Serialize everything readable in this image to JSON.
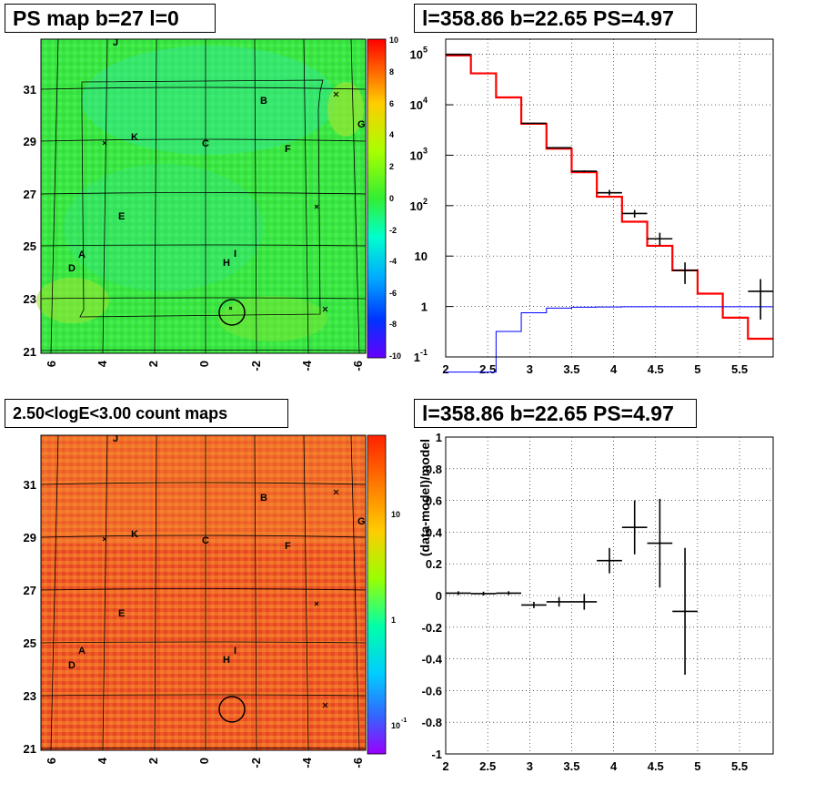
{
  "titles": {
    "top_left": "PS map b=27 l=0",
    "top_right": "l=358.86 b=22.65 PS=4.97",
    "bottom_left": "2.50<logE<3.00 count maps",
    "bottom_right": "l=358.86 b=22.65 PS=4.97"
  },
  "map": {
    "x_ticks": [
      "6",
      "4",
      "2",
      "0",
      "-2",
      "-4",
      "-6"
    ],
    "y_ticks": [
      "31",
      "29",
      "27",
      "25",
      "23",
      "21"
    ],
    "sources": [
      "J",
      "B",
      "G",
      "K",
      "C",
      "F",
      "E",
      "A",
      "D",
      "I",
      "H"
    ],
    "colors": {
      "ps_bg": "#3ce63c",
      "count_bg": "#ef5a28"
    }
  },
  "ps_colorbar": {
    "labels": [
      "10",
      "8",
      "6",
      "4",
      "2",
      "0",
      "-2",
      "-4",
      "-6",
      "-8",
      "-10"
    ]
  },
  "count_colorbar": {
    "labels": [
      "10",
      "1",
      "10",
      "-1"
    ]
  },
  "chart_data": [
    {
      "type": "line",
      "title": "l=358.86 b=22.65 PS=4.97",
      "xlim": [
        2,
        5.9
      ],
      "ylim": [
        0.1,
        200000
      ],
      "yscale": "log",
      "grid": true,
      "x_ticks": [
        "2",
        "2.5",
        "3",
        "3.5",
        "4",
        "4.5",
        "5",
        "5.5"
      ],
      "y_ticks": [
        {
          "base": "1",
          "exp": "-1",
          "v": 0.1
        },
        {
          "base": "1",
          "exp": "",
          "v": 1
        },
        {
          "base": "10",
          "exp": "",
          "v": 10
        },
        {
          "base": "10",
          "exp": "2",
          "v": 100
        },
        {
          "base": "10",
          "exp": "3",
          "v": 1000
        },
        {
          "base": "10",
          "exp": "4",
          "v": 10000
        },
        {
          "base": "10",
          "exp": "5",
          "v": 100000
        }
      ],
      "series": [
        {
          "kind": "step",
          "color": "#ff0000",
          "edges": [
            2.0,
            2.3,
            2.6,
            2.9,
            3.2,
            3.5,
            3.8,
            4.1,
            4.4,
            4.7,
            5.0,
            5.3,
            5.6,
            5.9
          ],
          "values": [
            95000,
            42000,
            14000,
            4200,
            1350,
            460,
            150,
            48,
            16,
            5.2,
            1.8,
            0.6,
            0.23
          ]
        },
        {
          "kind": "step",
          "color": "#0000ff",
          "edges": [
            2.0,
            2.3,
            2.6,
            2.9,
            3.2,
            3.5,
            3.8,
            4.1,
            4.4,
            4.7,
            5.0,
            5.3,
            5.6,
            5.9
          ],
          "values": [
            0.05,
            0.05,
            0.32,
            0.75,
            0.93,
            0.97,
            0.98,
            0.99,
            0.99,
            0.99,
            0.99,
            0.99,
            0.99
          ]
        },
        {
          "kind": "errorbar",
          "color": "#000000",
          "points": [
            {
              "x": 2.15,
              "xerr": 0.15,
              "y": 100000,
              "lo": 97000,
              "hi": 103000
            },
            {
              "x": 3.05,
              "xerr": 0.15,
              "y": 4300,
              "lo": 4200,
              "hi": 4400
            },
            {
              "x": 3.35,
              "xerr": 0.15,
              "y": 1400,
              "lo": 1360,
              "hi": 1440
            },
            {
              "x": 3.65,
              "xerr": 0.15,
              "y": 480,
              "lo": 460,
              "hi": 500
            },
            {
              "x": 3.95,
              "xerr": 0.15,
              "y": 180,
              "lo": 160,
              "hi": 205
            },
            {
              "x": 4.25,
              "xerr": 0.15,
              "y": 70,
              "lo": 58,
              "hi": 82
            },
            {
              "x": 4.55,
              "xerr": 0.15,
              "y": 22,
              "lo": 16,
              "hi": 29
            },
            {
              "x": 4.85,
              "xerr": 0.15,
              "y": 5.2,
              "lo": 2.8,
              "hi": 7.5
            },
            {
              "x": 5.75,
              "xerr": 0.15,
              "y": 2.0,
              "lo": 0.55,
              "hi": 3.5
            }
          ]
        }
      ]
    },
    {
      "type": "scatter",
      "title": "l=358.86 b=22.65 PS=4.97",
      "ylabel": "(data-model)/model",
      "xlim": [
        2,
        5.9
      ],
      "ylim": [
        -1,
        1
      ],
      "grid": true,
      "x_ticks": [
        "2",
        "2.5",
        "3",
        "3.5",
        "4",
        "4.5",
        "5",
        "5.5"
      ],
      "y_ticks": [
        "1",
        "0.8",
        "0.6",
        "0.4",
        "0.2",
        "0",
        "-0.2",
        "-0.4",
        "-0.6",
        "-0.8",
        "-1"
      ],
      "points": [
        {
          "x": 2.15,
          "y": 0.015,
          "xerr": 0.15,
          "yerr": 0.012
        },
        {
          "x": 2.45,
          "y": 0.012,
          "xerr": 0.15,
          "yerr": 0.012
        },
        {
          "x": 2.75,
          "y": 0.015,
          "xerr": 0.15,
          "yerr": 0.012
        },
        {
          "x": 3.05,
          "y": -0.06,
          "xerr": 0.15,
          "yerr": 0.02
        },
        {
          "x": 3.35,
          "y": -0.04,
          "xerr": 0.15,
          "yerr": 0.03
        },
        {
          "x": 3.65,
          "y": -0.04,
          "xerr": 0.15,
          "yerr": 0.05
        },
        {
          "x": 3.95,
          "y": 0.22,
          "xerr": 0.15,
          "yerr": 0.08
        },
        {
          "x": 4.25,
          "y": 0.43,
          "xerr": 0.15,
          "yerr": 0.17
        },
        {
          "x": 4.55,
          "y": 0.33,
          "xerr": 0.15,
          "yerr": 0.28
        },
        {
          "x": 4.85,
          "y": -0.1,
          "xerr": 0.15,
          "yerr": 0.4
        }
      ]
    }
  ]
}
